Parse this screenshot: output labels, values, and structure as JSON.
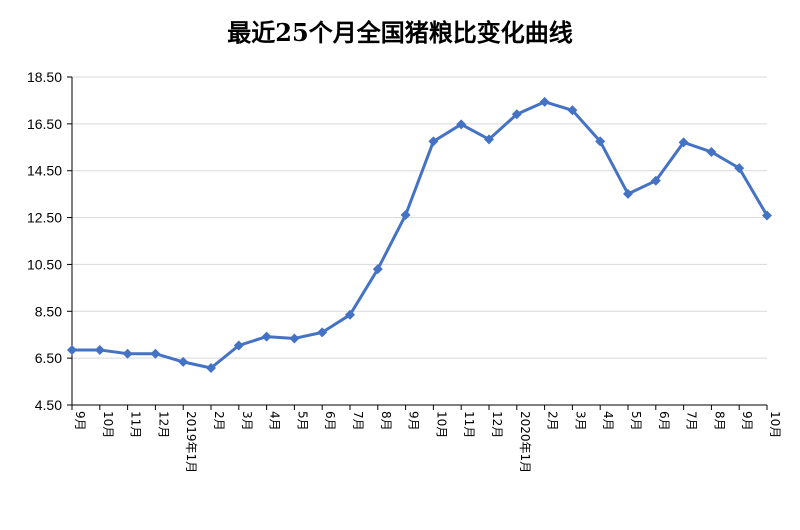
{
  "chart_data": {
    "type": "line",
    "title": "最近25个月全国猪粮比变化曲线",
    "xlabel": "",
    "ylabel": "",
    "ylim": [
      4.5,
      18.5
    ],
    "yticks": [
      "18.50",
      "16.50",
      "14.50",
      "12.50",
      "10.50",
      "8.50",
      "6.50",
      "4.50"
    ],
    "categories": [
      "9月",
      "10月",
      "11月",
      "12月",
      "2019年1月",
      "2月",
      "3月",
      "4月",
      "5月",
      "6月",
      "7月",
      "8月",
      "9月",
      "10月",
      "11月",
      "12月",
      "2020年1月",
      "2月",
      "3月",
      "4月",
      "5月",
      "6月",
      "7月",
      "8月",
      "9月",
      "10月"
    ],
    "series": [
      {
        "values": [
          6.85,
          6.85,
          6.69,
          6.69,
          6.34,
          6.08,
          7.04,
          7.42,
          7.34,
          7.6,
          8.35,
          10.3,
          12.61,
          15.75,
          16.48,
          15.84,
          16.91,
          17.44,
          17.08,
          15.75,
          13.51,
          14.07,
          15.71,
          15.3,
          14.61,
          12.59
        ]
      }
    ],
    "grid": true,
    "legend": "none",
    "colors": {
      "line": "#4472C4",
      "grid": "#D9D9D9",
      "axis": "#000000"
    }
  }
}
